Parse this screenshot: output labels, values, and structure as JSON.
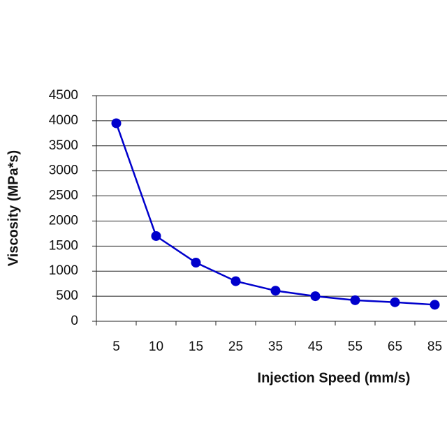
{
  "chart_data": {
    "type": "line",
    "x_label": "Injection Speed (mm/s)",
    "y_label": "Viscosity (MPa*s)",
    "categories": [
      "5",
      "10",
      "15",
      "25",
      "35",
      "45",
      "55",
      "65",
      "85"
    ],
    "series": [
      {
        "name": "Viscosity",
        "color": "#0000cc",
        "values": [
          3950,
          1700,
          1170,
          800,
          610,
          500,
          420,
          380,
          330
        ]
      }
    ],
    "ylim": [
      0,
      4500
    ],
    "yticks": [
      0,
      500,
      1000,
      1500,
      2000,
      2500,
      3000,
      3500,
      4000,
      4500
    ],
    "grid": true
  }
}
